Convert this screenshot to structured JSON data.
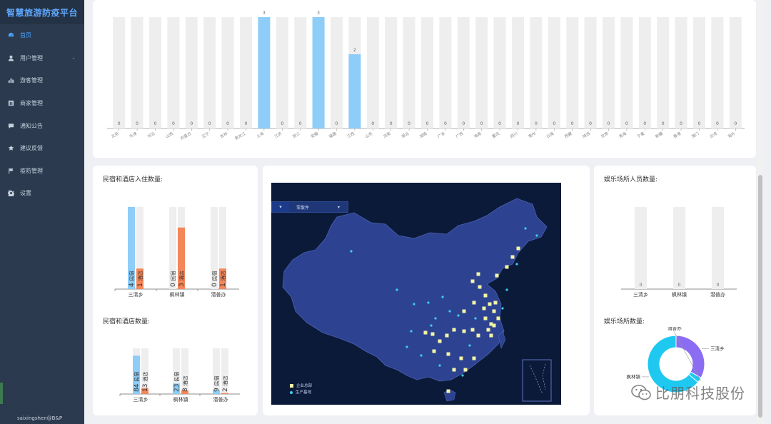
{
  "app": {
    "title": "智慧旅游防疫平台",
    "footer_user": "saixingshen@B&P"
  },
  "sidebar": {
    "items": [
      {
        "label": "首页",
        "icon": "dashboard-icon",
        "active": true,
        "has_children": false
      },
      {
        "label": "用户管理",
        "icon": "user-icon",
        "active": false,
        "has_children": true
      },
      {
        "label": "游客管理",
        "icon": "bar-chart-icon",
        "active": false,
        "has_children": false
      },
      {
        "label": "商家管理",
        "icon": "store-icon",
        "active": false,
        "has_children": false
      },
      {
        "label": "通知公告",
        "icon": "message-icon",
        "active": false,
        "has_children": false
      },
      {
        "label": "建议反馈",
        "icon": "star-icon",
        "active": false,
        "has_children": false
      },
      {
        "label": "疫防管理",
        "icon": "flag-icon",
        "active": false,
        "has_children": false
      },
      {
        "label": "设置",
        "icon": "gear-icon",
        "active": false,
        "has_children": false
      }
    ]
  },
  "colors": {
    "blue": "#8ecdf8",
    "orange": "#f4865a",
    "track": "#eeeeee",
    "accent": "#4ea3ff",
    "donut_cyan": "#1ec8f0",
    "donut_purple": "#8a6df2",
    "map_bg": "#0c1a3a",
    "map_land": "#2d4391",
    "map_yellow": "#f4f6a6",
    "map_cyan": "#3ed0ee"
  },
  "chart_data": [
    {
      "type": "bar",
      "id": "province-chart",
      "categories": [
        "北京",
        "天津",
        "河北",
        "山西",
        "内蒙古",
        "辽宁",
        "吉林",
        "黑龙江",
        "上海",
        "江苏",
        "浙江",
        "安徽",
        "福建",
        "江西",
        "山东",
        "河南",
        "湖北",
        "湖南",
        "广东",
        "广西",
        "海南",
        "重庆",
        "四川",
        "贵州",
        "云南",
        "西藏",
        "陕西",
        "甘肃",
        "青海",
        "宁夏",
        "新疆",
        "香港",
        "澳门",
        "台湾",
        "海外"
      ],
      "values": [
        0,
        0,
        0,
        0,
        0,
        0,
        0,
        0,
        3,
        0,
        0,
        3,
        0,
        2,
        0,
        0,
        0,
        0,
        0,
        0,
        0,
        0,
        0,
        0,
        0,
        0,
        0,
        0,
        0,
        0,
        0,
        0,
        0,
        0,
        0
      ],
      "ylim": [
        0,
        3
      ]
    },
    {
      "type": "bar",
      "id": "checkin-chart",
      "title": "民宿和酒店入住数量:",
      "categories": [
        "三清乡",
        "枫林镇",
        "潜普办"
      ],
      "series": [
        {
          "name": "民宿",
          "values": [
            4,
            0,
            0
          ]
        },
        {
          "name": "酒店",
          "values": [
            1,
            3,
            1
          ]
        }
      ],
      "ylim": [
        0,
        4
      ]
    },
    {
      "type": "bar",
      "id": "count-chart",
      "title": "民宿和酒店数量:",
      "categories": [
        "三清乡",
        "枫林镇",
        "潜普办"
      ],
      "series": [
        {
          "name": "民宿",
          "values": [
            84,
            23,
            9
          ]
        },
        {
          "name": "酒店",
          "values": [
            13,
            8,
            2
          ]
        }
      ],
      "ylim": [
        0,
        100
      ]
    },
    {
      "type": "bar",
      "id": "ent-people-chart",
      "title": "娱乐场所人员数量:",
      "categories": [
        "三清乡",
        "枫林镇",
        "潜普办"
      ],
      "values": [
        0,
        0,
        0
      ],
      "ylim": [
        0,
        1
      ]
    },
    {
      "type": "pie",
      "id": "ent-count-chart",
      "title": "娱乐场所数量:",
      "labels": [
        "三清乡",
        "潜普办",
        "枫林镇"
      ],
      "values": [
        33,
        3,
        64
      ]
    }
  ],
  "map": {
    "dropdown_label": "零散件",
    "legend": [
      "企业总部",
      "生产基地"
    ]
  },
  "watermark": "比朋科技股份"
}
